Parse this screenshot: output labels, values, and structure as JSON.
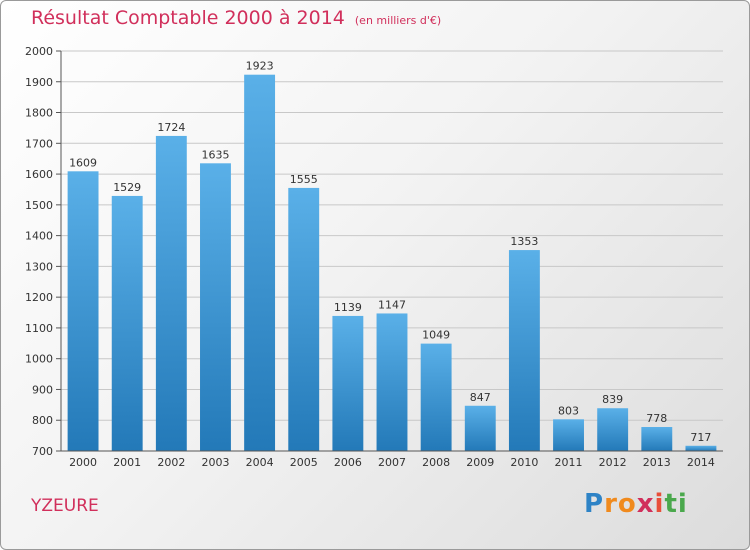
{
  "title": "Résultat Comptable 2000 à 2014",
  "unit": "(en milliers d'€)",
  "town": "YZEURE",
  "logo": {
    "letters": [
      "P",
      "r",
      "o",
      "x",
      "i",
      "t",
      "i"
    ],
    "colors": [
      "#2e83c6",
      "#f08a1d",
      "#f08a1d",
      "#d12f5b",
      "#e84f3a",
      "#4aa84c",
      "#4aa84c"
    ]
  },
  "colors": {
    "accent": "#d12f5b",
    "bar_top": "#5ab0e8",
    "bar_bottom": "#2379b8",
    "grid": "#c8c8c8"
  },
  "chart_data": {
    "type": "bar",
    "title": "Résultat Comptable 2000 à 2014",
    "subtitle": "(en milliers d'€)",
    "xlabel": "",
    "ylabel": "",
    "categories": [
      "2000",
      "2001",
      "2002",
      "2003",
      "2004",
      "2005",
      "2006",
      "2007",
      "2008",
      "2009",
      "2010",
      "2011",
      "2012",
      "2013",
      "2014"
    ],
    "values": [
      1609,
      1529,
      1724,
      1635,
      1923,
      1555,
      1139,
      1147,
      1049,
      847,
      1353,
      803,
      839,
      778,
      717
    ],
    "ylim": [
      700,
      2000
    ],
    "yticks": [
      700,
      800,
      900,
      1000,
      1100,
      1200,
      1300,
      1400,
      1500,
      1600,
      1700,
      1800,
      1900,
      2000
    ],
    "grid": true
  }
}
